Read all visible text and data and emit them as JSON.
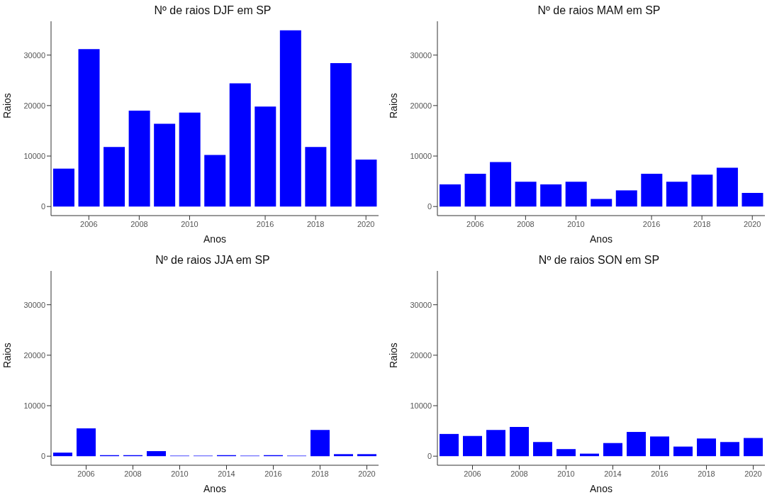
{
  "chart_data": [
    {
      "type": "bar",
      "title": "Nº de raios DJF em SP",
      "xlabel": "Anos",
      "ylabel": "Raios",
      "categories": [
        null,
        "2006",
        null,
        "2008",
        null,
        "2010",
        null,
        null,
        "2016",
        null,
        "2018",
        null,
        "2020"
      ],
      "values": [
        7500,
        31200,
        11800,
        19000,
        16400,
        18600,
        10200,
        24400,
        19800,
        34900,
        11800,
        28400,
        9300
      ],
      "color": "#0000ff",
      "ylim": [
        -1800,
        36700
      ],
      "yticks": [
        0,
        10000,
        20000,
        30000
      ]
    },
    {
      "type": "bar",
      "title": "Nº de raios MAM em SP",
      "xlabel": "Anos",
      "ylabel": "Raios",
      "categories": [
        null,
        "2006",
        null,
        "2008",
        null,
        "2010",
        null,
        null,
        "2016",
        null,
        "2018",
        null,
        "2020"
      ],
      "values": [
        4400,
        6500,
        8800,
        4900,
        4400,
        4900,
        1500,
        3200,
        6500,
        4900,
        6300,
        7700,
        2700
      ],
      "color": "#0000ff",
      "ylim": [
        -1800,
        36700
      ],
      "yticks": [
        0,
        10000,
        20000,
        30000
      ]
    },
    {
      "type": "bar",
      "title": "Nº de raios JJA em SP",
      "xlabel": "Anos",
      "ylabel": "Raios",
      "categories": [
        null,
        "2006",
        null,
        "2008",
        null,
        "2010",
        null,
        "2014",
        null,
        "2016",
        null,
        "2018",
        null,
        "2020"
      ],
      "values": [
        700,
        5500,
        200,
        200,
        1000,
        100,
        100,
        200,
        100,
        200,
        100,
        5200,
        400,
        400
      ],
      "color": "#0000ff",
      "ylim": [
        -1800,
        36700
      ],
      "yticks": [
        0,
        10000,
        20000,
        30000
      ]
    },
    {
      "type": "bar",
      "title": "Nº de raios SON em SP",
      "xlabel": "Anos",
      "ylabel": "Raios",
      "categories": [
        null,
        "2006",
        null,
        "2008",
        null,
        "2010",
        null,
        "2014",
        null,
        "2016",
        null,
        "2018",
        null,
        "2020"
      ],
      "values": [
        4400,
        4000,
        5200,
        5800,
        2800,
        1400,
        500,
        2600,
        4800,
        3900,
        1900,
        3500,
        2800,
        3600
      ],
      "color": "#0000ff",
      "ylim": [
        -1800,
        36700
      ],
      "yticks": [
        0,
        10000,
        20000,
        30000
      ]
    }
  ]
}
